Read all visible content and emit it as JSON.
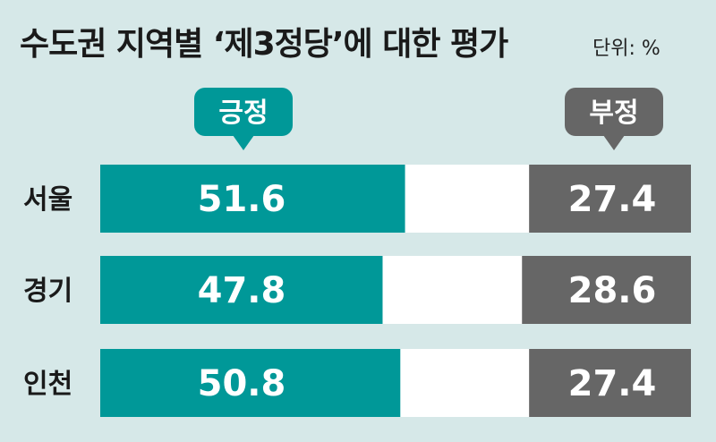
{
  "title": "수도권 지역별 ‘제3정당’에 대한 평가",
  "unit": "단위: %",
  "colors": {
    "positive": "#009898",
    "negative": "#666666",
    "middle": "#ffffff",
    "background": "#d6e8e8"
  },
  "chart_data": {
    "type": "bar",
    "orientation": "horizontal",
    "stacked": true,
    "title": "수도권 지역별 ‘제3정당’에 대한 평가",
    "unit": "단위: %",
    "categories": [
      "서울",
      "경기",
      "인천"
    ],
    "series": [
      {
        "name": "긍정",
        "values": [
          51.6,
          47.8,
          50.8
        ]
      },
      {
        "name": "부정",
        "values": [
          27.4,
          28.6,
          27.4
        ]
      }
    ],
    "xlim": [
      0,
      100
    ],
    "grid": false,
    "legend": "top"
  }
}
